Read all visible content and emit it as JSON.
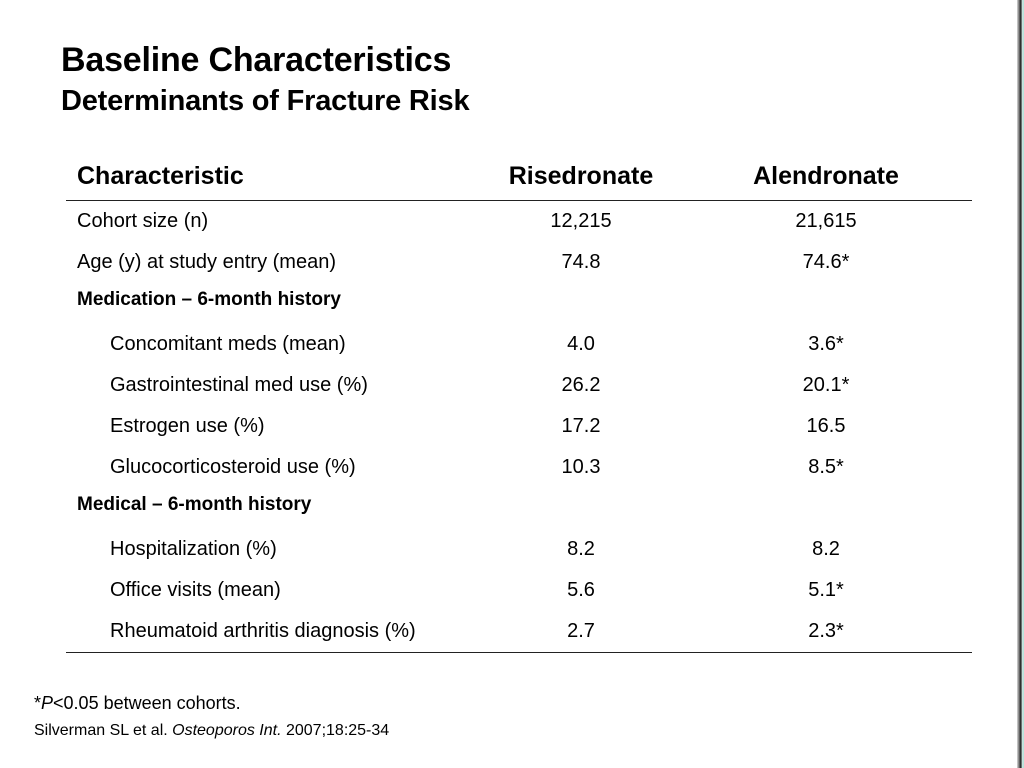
{
  "slide": {
    "title": "Baseline Characteristics",
    "subtitle": "Determinants of Fracture Risk"
  },
  "table": {
    "headers": {
      "characteristic": "Characteristic",
      "risedronate": "Risedronate",
      "alendronate": "Alendronate"
    },
    "rows": [
      {
        "label": "Cohort size (n)",
        "risedronate": "12,215",
        "alendronate": "21,615"
      },
      {
        "label": "Age (y) at study entry (mean)",
        "risedronate": "74.8",
        "alendronate": "74.6*"
      },
      {
        "label": "Medication – 6-month history"
      },
      {
        "label": "Concomitant meds (mean)",
        "risedronate": "4.0",
        "alendronate": "3.6*"
      },
      {
        "label": "Gastrointestinal med use (%)",
        "risedronate": "26.2",
        "alendronate": "20.1*"
      },
      {
        "label": "Estrogen use (%)",
        "risedronate": "17.2",
        "alendronate": "16.5"
      },
      {
        "label": "Glucocorticosteroid use (%)",
        "risedronate": "10.3",
        "alendronate": "8.5*"
      },
      {
        "label": "Medical – 6-month history"
      },
      {
        "label": "Hospitalization (%)",
        "risedronate": "8.2",
        "alendronate": "8.2"
      },
      {
        "label": "Office visits (mean)",
        "risedronate": "5.6",
        "alendronate": "5.1*"
      },
      {
        "label": "Rheumatoid arthritis diagnosis (%)",
        "risedronate": "2.7",
        "alendronate": "2.3*"
      }
    ]
  },
  "footnote": {
    "star": "*",
    "p": "P",
    "rest": "<0.05 between cohorts."
  },
  "citation": {
    "authors": "Silverman SL et al. ",
    "journal": "Osteoporos Int.",
    "details": " 2007;18:25-34"
  }
}
